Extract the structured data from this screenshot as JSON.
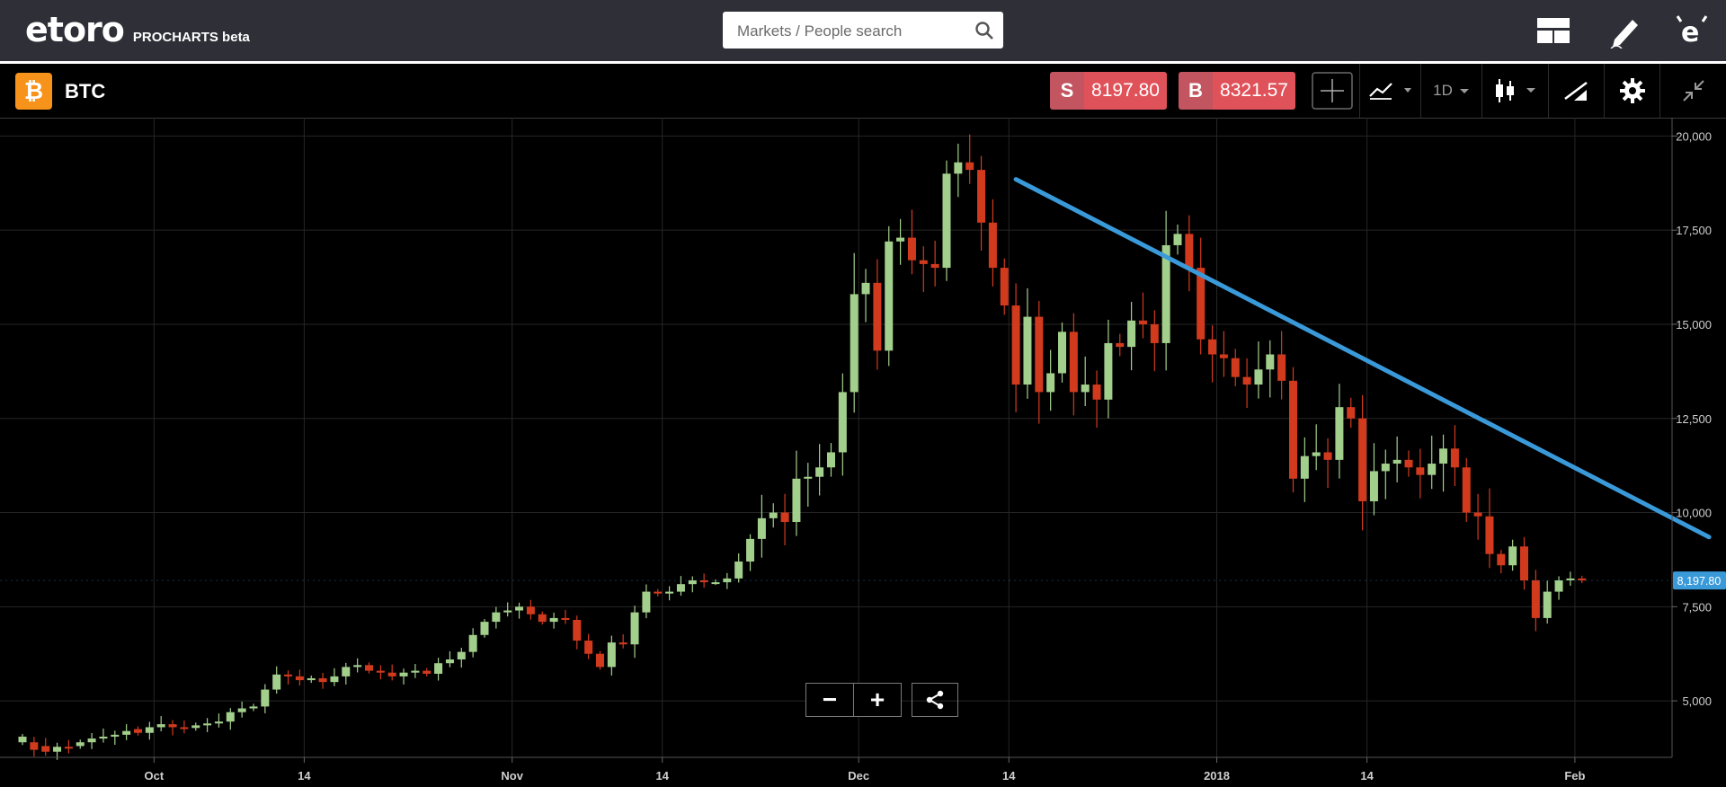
{
  "app": {
    "logo_text": "etoro",
    "product_label": "PROCHARTS beta"
  },
  "search": {
    "placeholder": "Markets / People search"
  },
  "topbar_icons": [
    "layout-icon",
    "edit-icon",
    "etoro-e-icon"
  ],
  "instrument": {
    "symbol": "BTC",
    "icon_glyph": "₿",
    "sell_letter": "S",
    "sell_price": "8197.80",
    "buy_letter": "B",
    "buy_price": "8321.57"
  },
  "toolbar": {
    "timeframe": "1D",
    "tools": [
      "crosshair-icon",
      "indicators-icon",
      "timeframe-dropdown",
      "candle-type-icon",
      "drawing-tools-icon",
      "settings-icon",
      "collapse-icon"
    ]
  },
  "colors": {
    "up": "#a3cf8c",
    "down": "#d23a1e",
    "trendline": "#3a9ad9",
    "price_tag": "#3a9ad9"
  },
  "chart_data": {
    "type": "candlestick",
    "symbol": "BTC",
    "interval": "1D",
    "ylim": [
      3500,
      20200
    ],
    "y_ticks": [
      "20,000",
      "17,500",
      "15,000",
      "12,500",
      "10,000",
      "7,500",
      "5,000"
    ],
    "y_tick_values": [
      20000,
      17500,
      15000,
      12500,
      10000,
      7500,
      5000
    ],
    "x_labels": [
      "Oct",
      "14",
      "Nov",
      "14",
      "Dec",
      "14",
      "2018",
      "14",
      "Feb"
    ],
    "x_label_dates": [
      "2017-10-01",
      "2017-10-14",
      "2017-11-01",
      "2017-11-14",
      "2017-12-01",
      "2017-12-14",
      "2018-01-01",
      "2018-01-14",
      "2018-02-01"
    ],
    "current_price": "8,197.80",
    "grid": true,
    "trendline": {
      "start": [
        "2017-12-15",
        18850
      ],
      "end": [
        "2018-02-13",
        9350
      ]
    },
    "candles_close": [
      4050,
      3700,
      3650,
      3780,
      3750,
      3900,
      4000,
      4050,
      4100,
      4200,
      4150,
      4300,
      4380,
      4300,
      4280,
      4350,
      4400,
      4450,
      4700,
      4800,
      4850,
      5300,
      5700,
      5650,
      5550,
      5600,
      5500,
      5650,
      5900,
      5950,
      5800,
      5750,
      5650,
      5750,
      5800,
      5720,
      6000,
      6100,
      6300,
      6750,
      7100,
      7350,
      7400,
      7500,
      7300,
      7100,
      7200,
      7150,
      6600,
      6250,
      5900,
      6550,
      6500,
      7350,
      7900,
      7850,
      7900,
      8100,
      8200,
      8150,
      8150,
      8250,
      8700,
      9300,
      9850,
      10000,
      9750,
      10900,
      10950,
      11200,
      11600,
      13200,
      15800,
      16100,
      14300,
      17200,
      17300,
      16700,
      16600,
      16500,
      19000,
      19300,
      19100,
      17700,
      16500,
      15500,
      13400,
      15200,
      13200,
      13700,
      14800,
      13200,
      13400,
      13000,
      14500,
      14400,
      15100,
      15000,
      14500,
      17100,
      17400,
      16500,
      14600,
      14200,
      14100,
      13600,
      13400,
      13800,
      14200,
      13500,
      10900,
      11500,
      11600,
      11400,
      12800,
      12500,
      10300,
      11100,
      11300,
      11400,
      11200,
      11000,
      11300,
      11700,
      11200,
      10000,
      9900,
      8900,
      8600,
      9100,
      8200,
      7200,
      7900,
      8200,
      8250,
      8197.8
    ],
    "candles_open": [
      3900,
      3900,
      3800,
      3650,
      3780,
      3800,
      3900,
      4000,
      4050,
      4100,
      4250,
      4150,
      4300,
      4380,
      4300,
      4280,
      4350,
      4400,
      4450,
      4700,
      4800,
      4850,
      5300,
      5700,
      5650,
      5550,
      5600,
      5500,
      5650,
      5900,
      5950,
      5800,
      5750,
      5650,
      5750,
      5800,
      5720,
      6000,
      6100,
      6300,
      6750,
      7100,
      7350,
      7400,
      7500,
      7300,
      7100,
      7200,
      7150,
      6600,
      6250,
      5900,
      6550,
      6500,
      7350,
      7900,
      7850,
      7900,
      8100,
      8200,
      8150,
      8150,
      8250,
      8700,
      9300,
      9850,
      10000,
      9750,
      10900,
      10950,
      11200,
      11600,
      13200,
      15800,
      16100,
      14300,
      17200,
      17300,
      16700,
      16600,
      16500,
      19000,
      19300,
      19100,
      17700,
      16500,
      15500,
      13400,
      15200,
      13200,
      13700,
      14800,
      13200,
      13400,
      13000,
      14500,
      14400,
      15100,
      15000,
      14500,
      17100,
      17400,
      16500,
      14600,
      14200,
      14100,
      13600,
      13400,
      13800,
      14200,
      13500,
      10900,
      11500,
      11600,
      11400,
      12800,
      12500,
      10300,
      11100,
      11300,
      11400,
      11200,
      11000,
      11300,
      11700,
      11200,
      10000,
      9900,
      8900,
      8600,
      9100,
      8200,
      7200,
      7900,
      8200,
      8250
    ]
  },
  "controls": {
    "zoom_out": "−",
    "zoom_in": "+",
    "share": "share-icon"
  }
}
